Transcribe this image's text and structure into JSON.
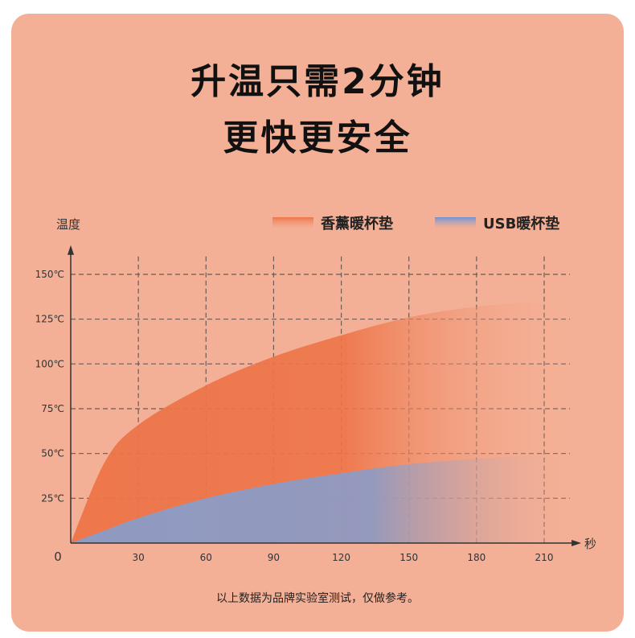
{
  "headline": {
    "line1": "升温只需2分钟",
    "line2": "更快更安全"
  },
  "footnote": "以上数据为品牌实验室测试，仅做参考。",
  "colors": {
    "background": "#f4b096",
    "grid": "#6a5a55",
    "series_aroma": "#ee7448",
    "series_usb": "#8a9cc8"
  },
  "chart_data": {
    "type": "area",
    "title": "",
    "xlabel": "秒",
    "ylabel": "温度",
    "x_ticks": [
      30,
      60,
      90,
      120,
      150,
      180,
      210
    ],
    "y_ticks": [
      "25℃",
      "50℃",
      "75℃",
      "100℃",
      "125℃",
      "150℃"
    ],
    "y_tick_values": [
      25,
      50,
      75,
      100,
      125,
      150
    ],
    "origin_label": "0",
    "xlim": [
      0,
      225
    ],
    "ylim": [
      0,
      160
    ],
    "grid": true,
    "legend_position": "top-right",
    "x": [
      0,
      15,
      30,
      60,
      90,
      120,
      150,
      180,
      210
    ],
    "series": [
      {
        "name": "香薰暖杯垫",
        "values": [
          0,
          45,
          66,
          88,
          104,
          116,
          126,
          132,
          135
        ]
      },
      {
        "name": "USB暖杯垫",
        "values": [
          0,
          7,
          14,
          25,
          33,
          39,
          44,
          47,
          49
        ]
      }
    ]
  }
}
